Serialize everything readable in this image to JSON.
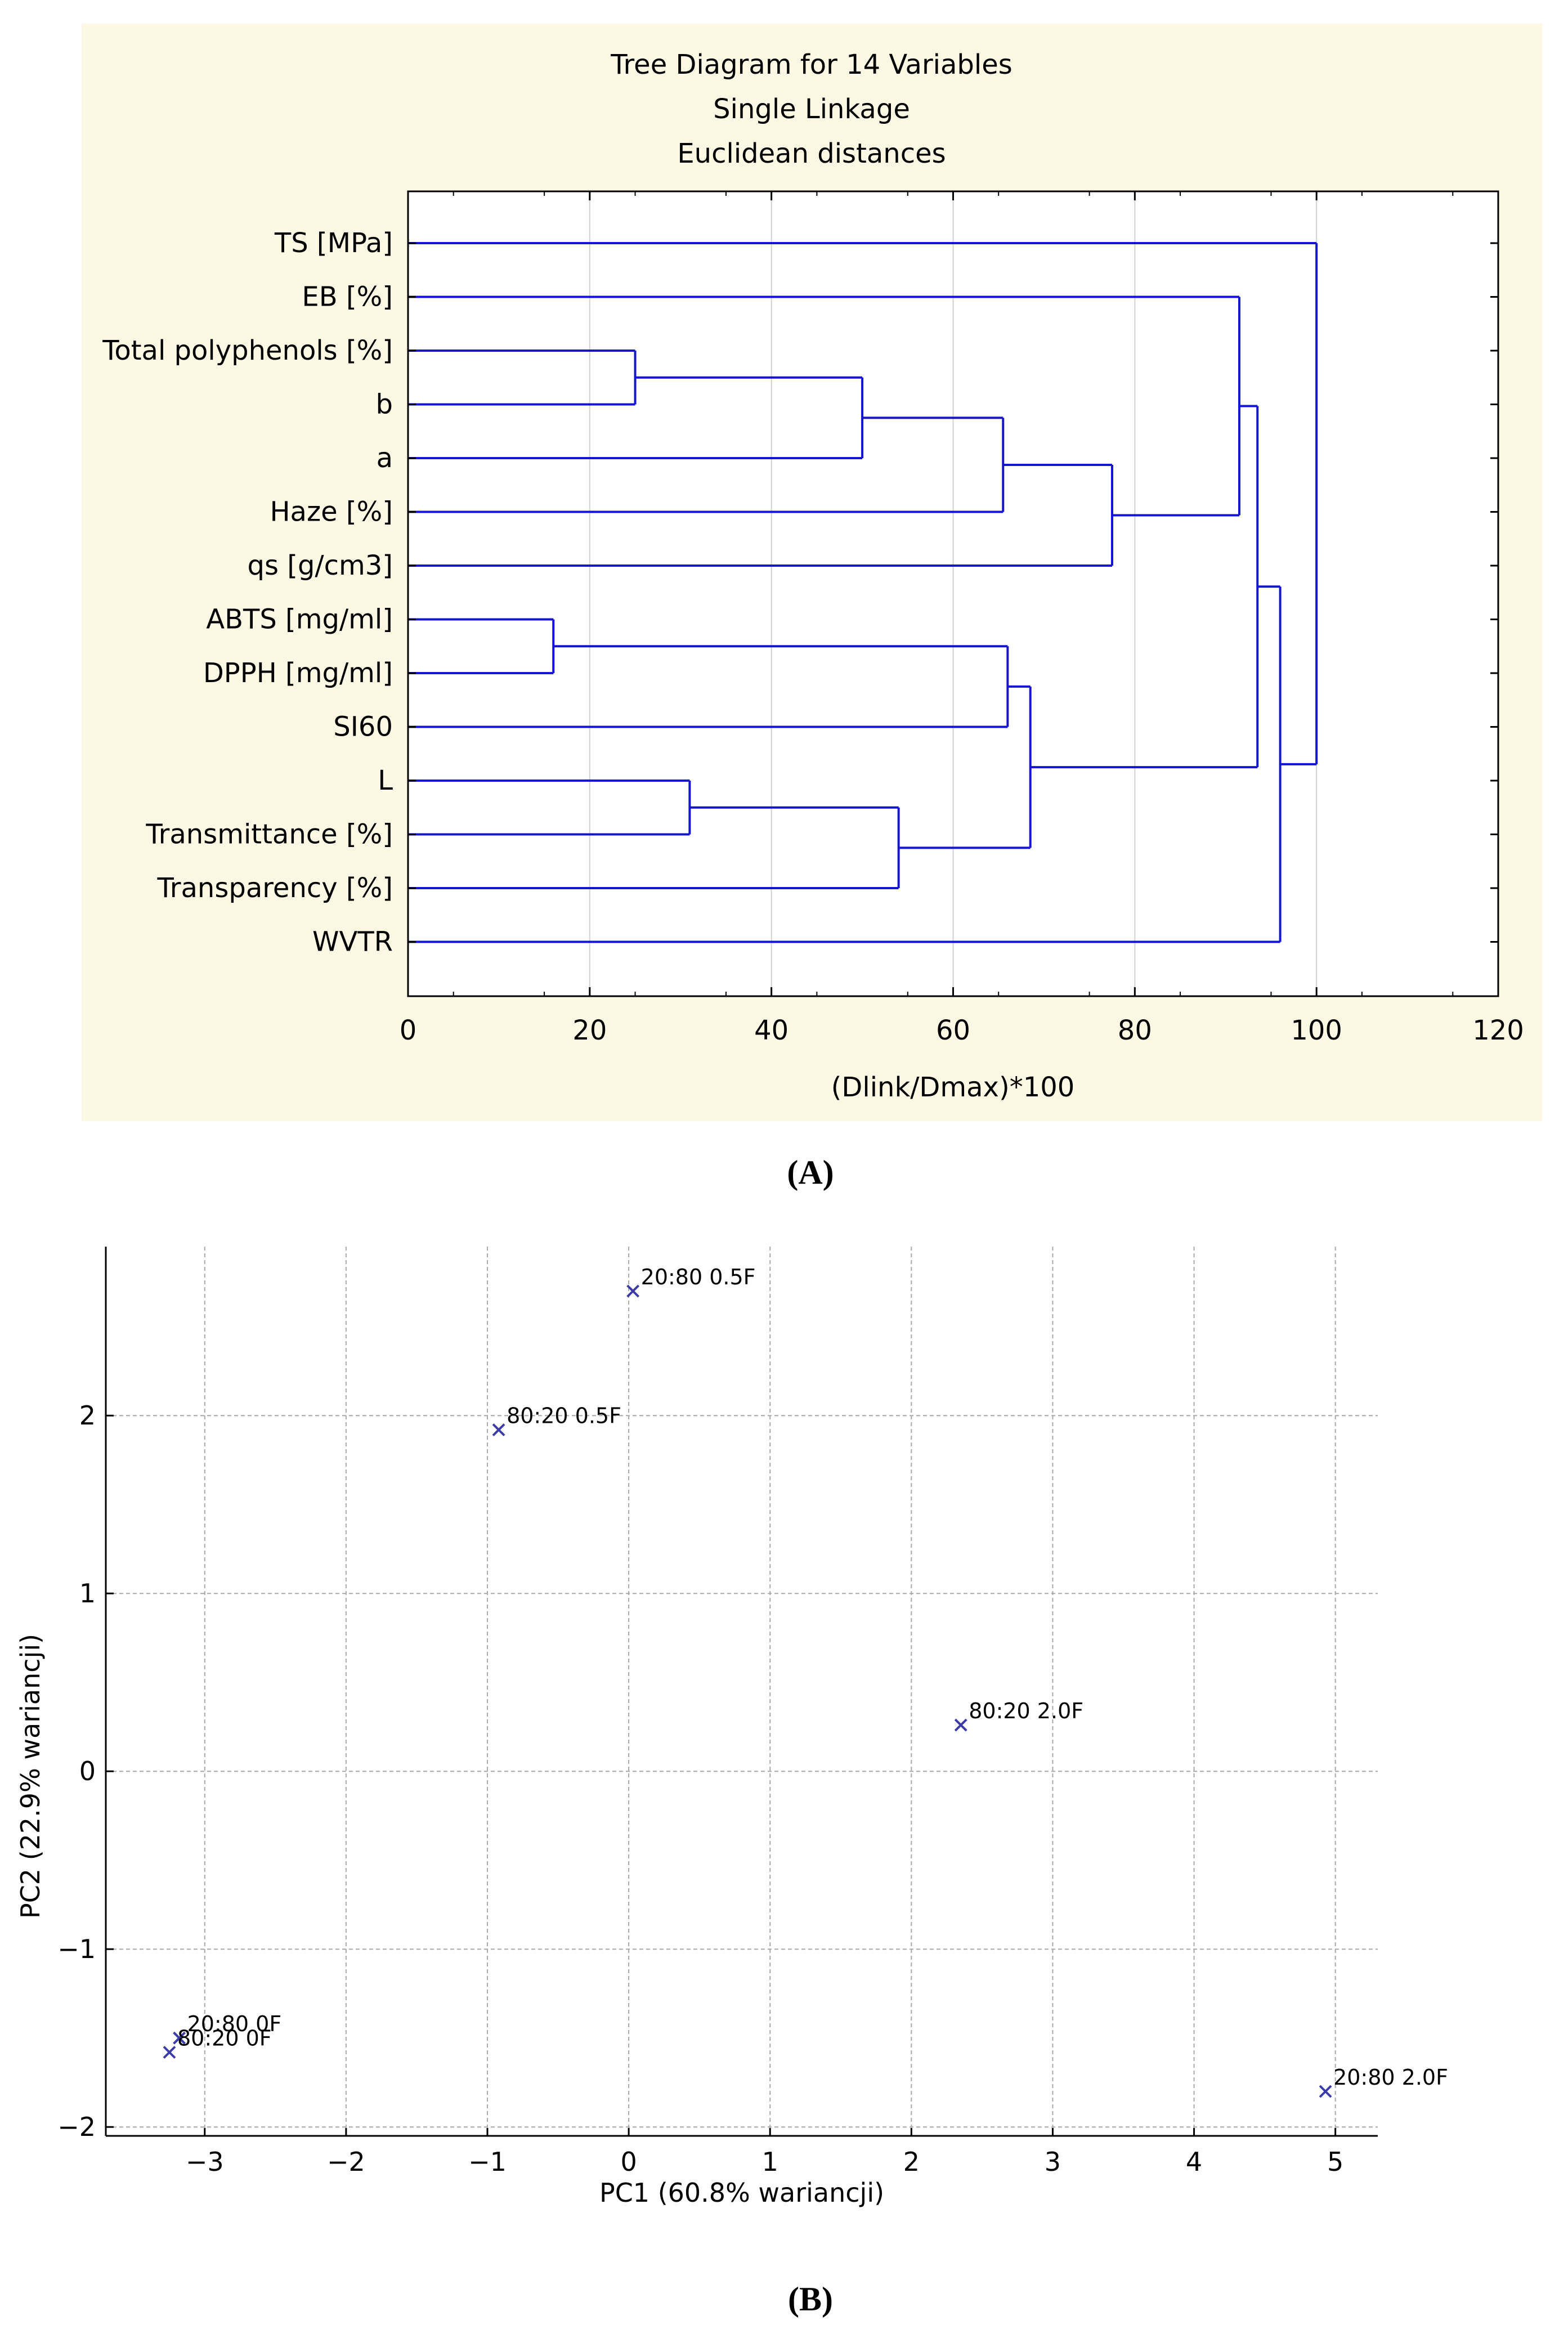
{
  "panels": {
    "a_label": "(A)",
    "b_label": "(B)"
  },
  "chart_data": [
    {
      "type": "dendrogram",
      "title_lines": [
        "Tree Diagram for 14 Variables",
        "Single Linkage",
        "Euclidean distances"
      ],
      "xlabel": "(Dlink/Dmax)*100",
      "xlim": [
        0,
        120
      ],
      "xticks": [
        0,
        20,
        40,
        60,
        80,
        100,
        120
      ],
      "grid": true,
      "background_color": "#fdf8e4",
      "line_color": "#1414d2",
      "leaves": [
        "TS [MPa]",
        "EB [%]",
        "Total polyphenols [%]",
        "b",
        "a",
        "Haze [%]",
        "qs [g/cm3]",
        "ABTS [mg/ml]",
        "DPPH [mg/ml]",
        "SI60",
        "L",
        "Transmittance [%]",
        "Transparency [%]",
        "WVTR"
      ],
      "merges": [
        {
          "id": "m1",
          "a": "ABTS [mg/ml]",
          "b": "DPPH [mg/ml]",
          "height": 16
        },
        {
          "id": "m2",
          "a": "Total polyphenols [%]",
          "b": "b",
          "height": 25
        },
        {
          "id": "m3",
          "a": "L",
          "b": "Transmittance [%]",
          "height": 31
        },
        {
          "id": "m4",
          "a": "m2",
          "b": "a",
          "height": 50
        },
        {
          "id": "m5",
          "a": "m3",
          "b": "Transparency [%]",
          "height": 54
        },
        {
          "id": "m6",
          "a": "m4",
          "b": "Haze [%]",
          "height": 65.5
        },
        {
          "id": "m7",
          "a": "m1",
          "b": "SI60",
          "height": 66
        },
        {
          "id": "m8",
          "a": "m7",
          "b": "m5",
          "height": 68.5
        },
        {
          "id": "m9",
          "a": "m6",
          "b": "qs [g/cm3]",
          "height": 77.5
        },
        {
          "id": "m10",
          "a": "EB [%]",
          "b": "m9",
          "height": 91.5
        },
        {
          "id": "m11",
          "a": "m10",
          "b": "m8",
          "height": 93.5
        },
        {
          "id": "m12",
          "a": "m11",
          "b": "WVTR",
          "height": 96
        },
        {
          "id": "m13",
          "a": "TS [MPa]",
          "b": "m12",
          "height": 100
        }
      ]
    },
    {
      "type": "scatter",
      "xlabel": "PC1 (60.8% wariancji)",
      "ylabel": "PC2 (22.9% wariancji)",
      "xlim": [
        -3.7,
        5.3
      ],
      "ylim": [
        -2.05,
        2.95
      ],
      "xticks": [
        -3,
        -2,
        -1,
        0,
        1,
        2,
        3,
        4,
        5
      ],
      "yticks": [
        -2,
        -1,
        0,
        1,
        2
      ],
      "xtick_labels": [
        "−3",
        "−2",
        "−1",
        "0",
        "1",
        "2",
        "3",
        "4",
        "5"
      ],
      "ytick_labels": [
        "−2",
        "−1",
        "0",
        "1",
        "2"
      ],
      "grid": true,
      "marker": "x",
      "marker_color": "#3a3aa8",
      "points": [
        {
          "label": "20:80 0.5F",
          "x": 0.03,
          "y": 2.7
        },
        {
          "label": "80:20 0.5F",
          "x": -0.92,
          "y": 1.92
        },
        {
          "label": "80:20 2.0F",
          "x": 2.35,
          "y": 0.26
        },
        {
          "label": "20:80 0F",
          "x": -3.18,
          "y": -1.5
        },
        {
          "label": "80:20 0F",
          "x": -3.25,
          "y": -1.58
        },
        {
          "label": "20:80 2.0F",
          "x": 4.93,
          "y": -1.8
        }
      ]
    }
  ]
}
